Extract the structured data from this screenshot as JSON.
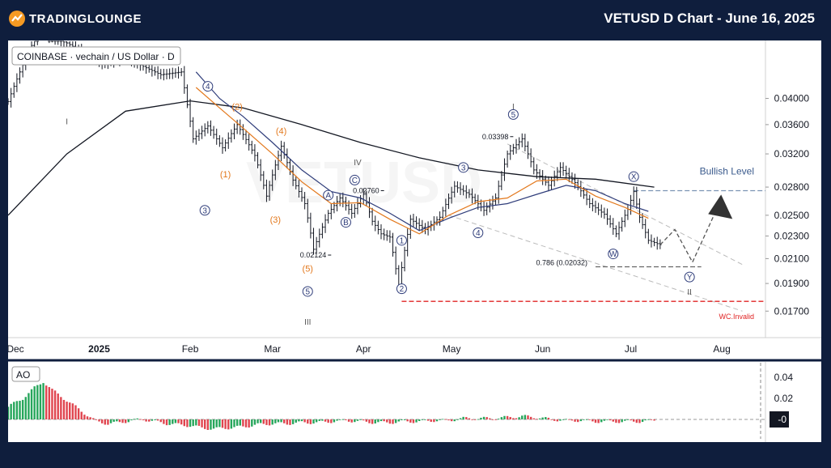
{
  "header": {
    "brand": "TRADINGLOUNGE",
    "title": "VETUSD D Chart - June 16, 2025"
  },
  "legend": {
    "symbol": "COINBASE · vechain / US Dollar · D",
    "ao": "AO"
  },
  "colors": {
    "up_bar": "#131722",
    "ma_long": "#131722",
    "ma_slow": "#2f3d7a",
    "ma_fast": "#e3781c",
    "wave_orange": "#e3781c",
    "wave_blue": "#2f3d7a",
    "bullish_level": "#7a93b3",
    "invalid_level": "#e02424",
    "channel": "#bbbbbb",
    "ao_up": "#26a65b",
    "ao_down": "#e0454f"
  },
  "chart_data": {
    "type": "ohlc",
    "title": "VETUSD D Chart - June 16, 2025",
    "watermark": "VETUSD",
    "timeframe": "D",
    "x_axis_labels": [
      "Dec",
      "2025",
      "Feb",
      "Mar",
      "Apr",
      "May",
      "Jun",
      "Jul",
      "Aug"
    ],
    "x_axis_days": [
      0,
      31,
      62,
      90,
      121,
      151,
      182,
      212,
      243
    ],
    "y_axis_ticks": [
      "0.04000",
      "0.03600",
      "0.03200",
      "0.02800",
      "0.02500",
      "0.02300",
      "0.02100",
      "0.01900",
      "0.01700"
    ],
    "y_axis_values": [
      0.04,
      0.036,
      0.032,
      0.028,
      0.025,
      0.023,
      0.021,
      0.019,
      0.017
    ],
    "price_path": [
      [
        0,
        0.0395
      ],
      [
        10,
        0.052
      ],
      [
        20,
        0.05
      ],
      [
        32,
        0.046
      ],
      [
        40,
        0.047
      ],
      [
        52,
        0.044
      ],
      [
        59,
        0.0445
      ],
      [
        61,
        0.039
      ],
      [
        63,
        0.034
      ],
      [
        68,
        0.0358
      ],
      [
        73,
        0.0328
      ],
      [
        78,
        0.036
      ],
      [
        84,
        0.0318
      ],
      [
        88,
        0.027
      ],
      [
        93,
        0.033
      ],
      [
        97,
        0.0288
      ],
      [
        101,
        0.0262
      ],
      [
        104,
        0.0218
      ],
      [
        109,
        0.0252
      ],
      [
        113,
        0.0268
      ],
      [
        117,
        0.0252
      ],
      [
        121,
        0.0272
      ],
      [
        124,
        0.0244
      ],
      [
        127,
        0.0232
      ],
      [
        130,
        0.0229
      ],
      [
        133,
        0.0188
      ],
      [
        137,
        0.0246
      ],
      [
        142,
        0.0236
      ],
      [
        147,
        0.0248
      ],
      [
        152,
        0.0281
      ],
      [
        157,
        0.0272
      ],
      [
        162,
        0.0255
      ],
      [
        166,
        0.0268
      ],
      [
        170,
        0.032
      ],
      [
        175,
        0.034
      ],
      [
        179,
        0.03
      ],
      [
        184,
        0.0282
      ],
      [
        188,
        0.0303
      ],
      [
        193,
        0.0285
      ],
      [
        198,
        0.0262
      ],
      [
        203,
        0.0251
      ],
      [
        207,
        0.0232
      ],
      [
        211,
        0.0256
      ],
      [
        213,
        0.0275
      ],
      [
        215,
        0.0248
      ],
      [
        218,
        0.0226
      ],
      [
        222,
        0.0222
      ]
    ],
    "moving_averages": [
      {
        "name": "Long MA",
        "color": "#131722",
        "points": [
          [
            0,
            0.025
          ],
          [
            20,
            0.032
          ],
          [
            40,
            0.038
          ],
          [
            62,
            0.0396
          ],
          [
            80,
            0.0385
          ],
          [
            100,
            0.036
          ],
          [
            120,
            0.0335
          ],
          [
            140,
            0.0315
          ],
          [
            160,
            0.03
          ],
          [
            180,
            0.0292
          ],
          [
            200,
            0.0289
          ],
          [
            220,
            0.028
          ]
        ]
      },
      {
        "name": "Slow MA",
        "color": "#2f3d7a",
        "points": [
          [
            64,
            0.0445
          ],
          [
            72,
            0.04
          ],
          [
            80,
            0.0372
          ],
          [
            90,
            0.0335
          ],
          [
            100,
            0.03
          ],
          [
            110,
            0.0275
          ],
          [
            120,
            0.0268
          ],
          [
            130,
            0.0252
          ],
          [
            140,
            0.0235
          ],
          [
            150,
            0.0247
          ],
          [
            160,
            0.0258
          ],
          [
            170,
            0.0262
          ],
          [
            180,
            0.0272
          ],
          [
            190,
            0.0282
          ],
          [
            200,
            0.0276
          ],
          [
            210,
            0.0262
          ],
          [
            218,
            0.0254
          ]
        ]
      },
      {
        "name": "Fast MA",
        "color": "#e3781c",
        "points": [
          [
            64,
            0.0418
          ],
          [
            72,
            0.0385
          ],
          [
            80,
            0.0355
          ],
          [
            90,
            0.032
          ],
          [
            100,
            0.0286
          ],
          [
            110,
            0.0262
          ],
          [
            120,
            0.0263
          ],
          [
            130,
            0.0246
          ],
          [
            140,
            0.0232
          ],
          [
            150,
            0.025
          ],
          [
            160,
            0.0264
          ],
          [
            170,
            0.0268
          ],
          [
            180,
            0.0287
          ],
          [
            190,
            0.0289
          ],
          [
            200,
            0.027
          ],
          [
            210,
            0.0258
          ],
          [
            218,
            0.0247
          ]
        ]
      }
    ],
    "levels": [
      {
        "name": "Bullish Level",
        "value": 0.0276,
        "start_day": 213,
        "color": "#7a93b3",
        "style": "dashed"
      },
      {
        "name": "WC.Invalid",
        "value": 0.01768,
        "start_day": 134,
        "color": "#e02424",
        "style": "dashed"
      },
      {
        "name": "0.786 (0.02032)",
        "value": 0.02032,
        "start_day": 200,
        "end_day": 236,
        "color": "#666666",
        "style": "dashed"
      }
    ],
    "price_annotations": [
      {
        "label": "0.03398",
        "day": 172,
        "value": 0.0343
      },
      {
        "label": "0.02760",
        "day": 128,
        "value": 0.0276
      },
      {
        "label": "0.02124",
        "day": 110,
        "value": 0.0213
      }
    ],
    "wave_labels": [
      {
        "label": "I",
        "day": 20,
        "value": 0.0365,
        "style": "plain"
      },
      {
        "label": "4",
        "day": 68,
        "value": 0.042,
        "style": "blue-circle"
      },
      {
        "label": "3",
        "day": 67,
        "value": 0.0255,
        "style": "blue-circle"
      },
      {
        "label": "(2)",
        "day": 78,
        "value": 0.0387,
        "style": "orange-paren"
      },
      {
        "label": "(4)",
        "day": 93,
        "value": 0.0351,
        "style": "orange-paren"
      },
      {
        "label": "(1)",
        "day": 74,
        "value": 0.0295,
        "style": "orange-paren"
      },
      {
        "label": "(3)",
        "day": 91,
        "value": 0.0246,
        "style": "orange-paren"
      },
      {
        "label": "(5)",
        "day": 102,
        "value": 0.0202,
        "style": "orange-paren"
      },
      {
        "label": "5",
        "day": 102,
        "value": 0.0184,
        "style": "blue-circle"
      },
      {
        "label": "III",
        "day": 102,
        "value": 0.0163,
        "style": "plain"
      },
      {
        "label": "IV",
        "day": 119,
        "value": 0.031,
        "style": "plain"
      },
      {
        "label": "C",
        "day": 118,
        "value": 0.0288,
        "style": "blue-circle"
      },
      {
        "label": "A",
        "day": 109,
        "value": 0.0271,
        "style": "blue-circle"
      },
      {
        "label": "B",
        "day": 115,
        "value": 0.0243,
        "style": "blue-circle"
      },
      {
        "label": "1",
        "day": 134,
        "value": 0.0226,
        "style": "blue-circle"
      },
      {
        "label": "2",
        "day": 134,
        "value": 0.0186,
        "style": "blue-circle"
      },
      {
        "label": "3",
        "day": 155,
        "value": 0.0303,
        "style": "blue-circle"
      },
      {
        "label": "4",
        "day": 160,
        "value": 0.0233,
        "style": "blue-circle"
      },
      {
        "label": "I",
        "day": 172,
        "value": 0.0388,
        "style": "plain"
      },
      {
        "label": "5",
        "day": 172,
        "value": 0.0375,
        "style": "blue-circle"
      },
      {
        "label": "X",
        "day": 213,
        "value": 0.0292,
        "style": "blue-circle"
      },
      {
        "label": "W",
        "day": 206,
        "value": 0.0214,
        "style": "blue-circle"
      },
      {
        "label": "Y",
        "day": 232,
        "value": 0.0195,
        "style": "blue-circle"
      },
      {
        "label": "II",
        "day": 232,
        "value": 0.0184,
        "style": "plain"
      }
    ],
    "projection_path": [
      [
        222,
        0.0222
      ],
      [
        227,
        0.0236
      ],
      [
        233,
        0.0207
      ],
      [
        240,
        0.0248
      ]
    ],
    "channel_upper": [
      [
        170,
        0.0333
      ],
      [
        250,
        0.0205
      ]
    ],
    "channel_lower": [
      [
        150,
        0.025
      ],
      [
        250,
        0.017
      ]
    ],
    "ao": {
      "name": "AO",
      "y_axis_ticks": [
        "0.04",
        "0.02",
        "-0"
      ],
      "y_axis_values": [
        0.04,
        0.02,
        0.0
      ],
      "current_label": "-0",
      "series_path": [
        [
          0,
          0.012
        ],
        [
          5,
          0.02
        ],
        [
          9,
          0.03
        ],
        [
          12,
          0.036
        ],
        [
          15,
          0.028
        ],
        [
          19,
          0.02
        ],
        [
          23,
          0.012
        ],
        [
          27,
          0.004
        ],
        [
          30,
          -0.002
        ],
        [
          34,
          -0.004
        ],
        [
          38,
          -0.003
        ],
        [
          42,
          -0.001
        ],
        [
          46,
          0.0
        ],
        [
          50,
          -0.002
        ],
        [
          54,
          -0.004
        ],
        [
          58,
          -0.005
        ],
        [
          62,
          -0.006
        ],
        [
          66,
          -0.008
        ],
        [
          70,
          -0.009
        ],
        [
          75,
          -0.008
        ],
        [
          80,
          -0.007
        ],
        [
          85,
          -0.005
        ],
        [
          90,
          -0.004
        ],
        [
          95,
          -0.004
        ],
        [
          100,
          -0.003
        ],
        [
          105,
          -0.003
        ],
        [
          110,
          -0.002
        ],
        [
          115,
          -0.001
        ],
        [
          120,
          -0.002
        ],
        [
          125,
          -0.003
        ],
        [
          130,
          -0.003
        ],
        [
          135,
          -0.002
        ],
        [
          140,
          -0.002
        ],
        [
          145,
          -0.001
        ],
        [
          150,
          -0.001
        ],
        [
          155,
          0.001
        ],
        [
          160,
          0.001
        ],
        [
          165,
          0.001
        ],
        [
          170,
          0.002
        ],
        [
          175,
          0.003
        ],
        [
          180,
          0.002
        ],
        [
          185,
          0.0
        ],
        [
          190,
          -0.001
        ],
        [
          195,
          -0.001
        ],
        [
          200,
          -0.002
        ],
        [
          205,
          -0.002
        ],
        [
          210,
          -0.002
        ],
        [
          215,
          -0.002
        ],
        [
          220,
          -0.001
        ]
      ]
    }
  }
}
